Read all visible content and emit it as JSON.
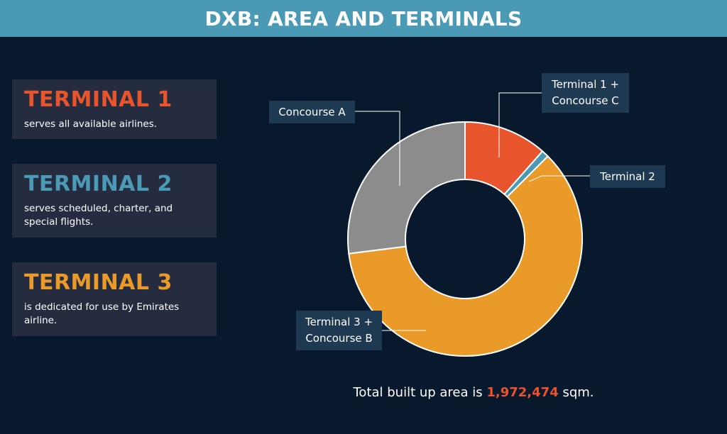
{
  "header": {
    "title": "DXB: AREA AND TERMINALS"
  },
  "cards": [
    {
      "title": "TERMINAL 1",
      "description": "serves all available airlines."
    },
    {
      "title": "TERMINAL 2",
      "description": "serves scheduled, charter, and special flights."
    },
    {
      "title": "TERMINAL 3",
      "description": "is dedicated for use by Emirates airline."
    }
  ],
  "chart_data": {
    "type": "pie",
    "variant": "donut",
    "title": "",
    "categories": [
      "Terminal 1 + Concourse C",
      "Terminal 2",
      "Terminal 3 + Concourse B",
      "Concourse A"
    ],
    "label_lines": [
      [
        "Terminal 1 +",
        "Concourse C"
      ],
      [
        "Terminal 2"
      ],
      [
        "Terminal 3 +",
        "Concourse B"
      ],
      [
        "Concourse A"
      ]
    ],
    "values": [
      11.5,
      1.0,
      60.5,
      27.0
    ],
    "value_unit": "percent (estimated)",
    "start_angle_deg": 0,
    "direction": "clockwise",
    "colors": [
      "#e8542c",
      "#4a9ab6",
      "#e99a29",
      "#8c8c8c"
    ],
    "separator_color": "#ffffff"
  },
  "footer": {
    "prefix": "Total built up area is ",
    "value": "1,972,474",
    "suffix": " sqm."
  },
  "colors": {
    "background": "#08182d",
    "header": "#4a9ab6",
    "card": "#262c3f",
    "label_box": "#1d3a52",
    "terminal_1": "#e8542c",
    "terminal_2": "#4a9ab6",
    "terminal_3": "#e99a29",
    "concourse_a": "#8c8c8c"
  }
}
